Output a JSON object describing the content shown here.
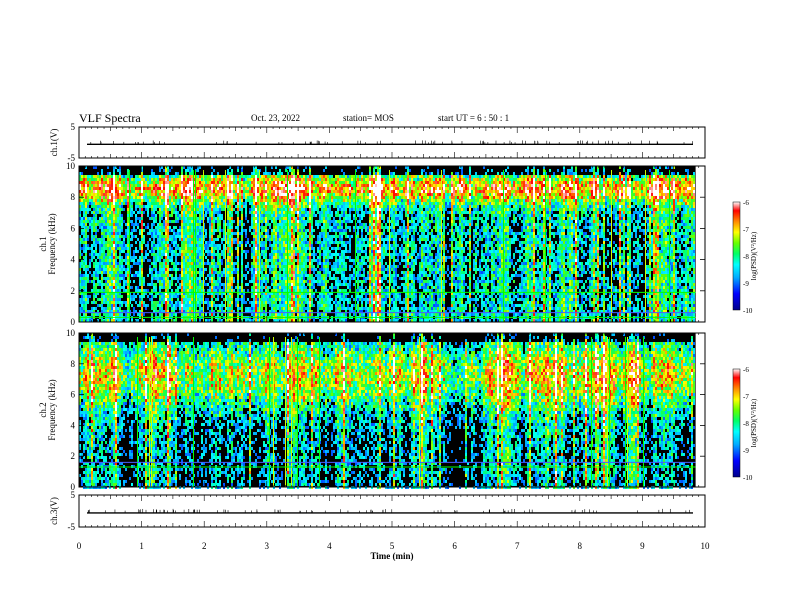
{
  "header": {
    "title": "VLF Spectra",
    "date": "Oct. 23, 2022",
    "station": "station= MOS",
    "start_ut": "start UT =   6 : 50 : 1"
  },
  "colors": {
    "background": "#000000",
    "colormap": [
      "#00008b",
      "#0000ff",
      "#00aaff",
      "#00ffff",
      "#00ff66",
      "#66ff00",
      "#ffff00",
      "#ff8800",
      "#ff0000",
      "#ffffff"
    ],
    "trace": "#000000",
    "harmonic_line": "#00ff00",
    "harmonic_line_blue": "#4b5cff"
  },
  "chart_data": [
    {
      "type": "line",
      "name": "ch1-waveform",
      "ylabel": "ch.1(V)",
      "ylim": [
        -5,
        5
      ],
      "yticks": [
        5,
        -5
      ],
      "xlim": [
        0,
        10
      ],
      "baseline": -0.6
    },
    {
      "type": "heatmap",
      "name": "ch1-spectrogram",
      "ylabel": "ch.1\nFrequency (kHz)",
      "ylim": [
        0,
        10
      ],
      "yticks": [
        0,
        2,
        4,
        6,
        8,
        10
      ],
      "xlim": [
        0,
        10
      ],
      "data_end_min": 9.85,
      "colorbar": {
        "label": "log(PSD)(V²/Hz)",
        "range": [
          -10,
          -6
        ],
        "ticks": [
          -6,
          -7,
          -8,
          -9,
          -10
        ]
      },
      "horizontal_lines_khz": [
        0.3,
        0.6,
        1.9
      ]
    },
    {
      "type": "heatmap",
      "name": "ch2-spectrogram",
      "ylabel": "ch.2\nFrequency (kHz)",
      "ylim": [
        0,
        10
      ],
      "yticks": [
        0,
        2,
        4,
        6,
        8,
        10
      ],
      "xlim": [
        0,
        10
      ],
      "data_end_min": 9.85,
      "colorbar": {
        "label": "log(PSD)(V²/Hz)",
        "range": [
          -10,
          -6
        ],
        "ticks": [
          -6,
          -7,
          -8,
          -9,
          -10
        ]
      },
      "horizontal_lines_khz": [
        1.3,
        1.6
      ]
    },
    {
      "type": "line",
      "name": "ch3-waveform",
      "ylabel": "ch.3(V)",
      "ylim": [
        -5,
        5
      ],
      "yticks": [
        5,
        -5
      ],
      "xlim": [
        0,
        10
      ],
      "baseline": -0.6,
      "xlabel": "Time  (min)",
      "xticks": [
        0,
        1,
        2,
        3,
        4,
        5,
        6,
        7,
        8,
        9,
        10
      ]
    }
  ]
}
